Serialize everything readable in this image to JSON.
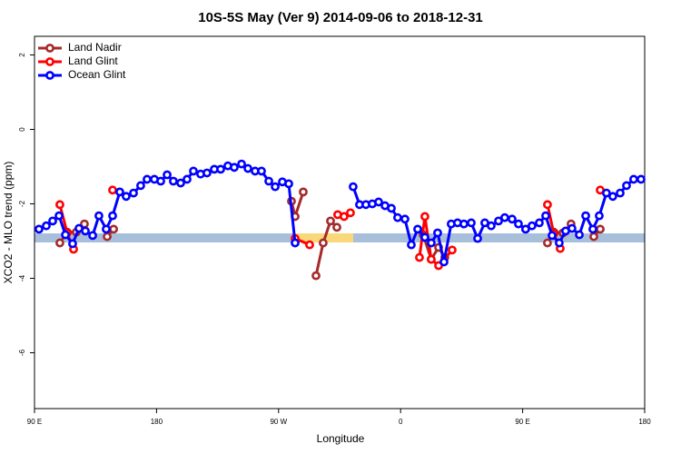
{
  "chart_data": {
    "type": "line",
    "title": "10S-5S May (Ver 9)   2014-09-06 to 2018-12-31",
    "xlabel": "Longitude",
    "ylabel": "XCO2 - MLO trend (ppm)",
    "xlim": [
      90,
      540
    ],
    "ylim": [
      -7.5,
      2.5
    ],
    "xticks": [
      {
        "value": 90,
        "label": "90 E"
      },
      {
        "value": 180,
        "label": "180"
      },
      {
        "value": 270,
        "label": "90 W"
      },
      {
        "value": 360,
        "label": "0"
      },
      {
        "value": 450,
        "label": "90 E"
      },
      {
        "value": 540,
        "label": "180"
      }
    ],
    "yticks": [
      -6,
      -4,
      -2,
      0,
      2
    ],
    "legend": "top-left",
    "series": [
      {
        "name": "Land Nadir",
        "color": "#a52a2a",
        "x": [
          108.7,
          114.1,
          120.8,
          126.8,
          null,
          143.6,
          148.3,
          null,
          279.5,
          282.2,
          288.2,
          null,
          297.6,
          302.9,
          308.3,
          313.0,
          null,
          376.6,
          382.6,
          388.0,
          392.6,
          null,
          468.3,
          473.0,
          479.7,
          485.7,
          null,
          502.5,
          507.2
        ],
        "values": [
          -3.05,
          -2.76,
          -2.76,
          -2.54,
          null,
          -2.88,
          -2.68,
          null,
          -1.93,
          -2.34,
          -1.68,
          null,
          -3.93,
          -3.05,
          -2.46,
          -2.63,
          null,
          -2.83,
          -3.49,
          -3.17,
          -3.44,
          null,
          -3.05,
          -2.76,
          -2.78,
          -2.54,
          null,
          -2.88,
          -2.68
        ]
      },
      {
        "name": "Land Glint",
        "color": "#ff0000",
        "x": [
          108.7,
          114.1,
          118.8,
          null,
          147.6,
          null,
          282.2,
          292.9,
          null,
          313.6,
          318.3,
          323.0,
          null,
          373.9,
          377.9,
          382.6,
          388.0,
          398.0,
          null,
          468.3,
          473.0,
          477.7,
          null,
          507.2
        ],
        "values": [
          -2.02,
          -2.78,
          -3.22,
          null,
          -1.63,
          null,
          -2.93,
          -3.1,
          null,
          -2.29,
          -2.34,
          -2.24,
          null,
          -3.44,
          -2.34,
          -3.49,
          -3.66,
          -3.24,
          null,
          -2.02,
          -2.8,
          -3.2,
          null,
          -1.63
        ]
      },
      {
        "name": "Ocean Glint",
        "color": "#0000ff",
        "x": [
          93.3,
          98.7,
          103.4,
          108.1,
          112.8,
          118.1,
          122.8,
          127.5,
          132.9,
          137.5,
          142.9,
          147.6,
          152.9,
          157.6,
          163.0,
          168.3,
          173.0,
          178.4,
          183.1,
          187.8,
          192.4,
          197.8,
          202.5,
          207.2,
          212.5,
          217.2,
          222.6,
          227.3,
          232.6,
          237.3,
          242.7,
          247.4,
          252.7,
          257.4,
          262.8,
          267.5,
          272.8,
          277.5,
          282.2,
          null,
          325.0,
          329.7,
          334.4,
          339.1,
          343.8,
          348.5,
          353.2,
          357.8,
          363.2,
          367.9,
          372.6,
          377.9,
          382.6,
          387.3,
          392.0,
          397.3,
          402.0,
          406.7,
          412.1,
          416.8,
          422.1,
          426.8,
          432.2,
          436.8,
          442.2,
          446.9,
          452.2,
          456.9,
          462.3,
          467.0,
          471.7,
          477.0,
          481.7,
          486.4,
          491.8,
          496.5,
          501.8,
          506.5,
          511.8,
          516.5,
          521.9,
          526.6,
          531.9,
          537.3
        ],
        "values": [
          -2.68,
          -2.59,
          -2.46,
          -2.32,
          -2.83,
          -3.07,
          -2.66,
          -2.73,
          -2.85,
          -2.32,
          -2.68,
          -2.32,
          -1.68,
          -1.8,
          -1.71,
          -1.51,
          -1.34,
          -1.34,
          -1.39,
          -1.22,
          -1.39,
          -1.44,
          -1.34,
          -1.12,
          -1.2,
          -1.17,
          -1.07,
          -1.07,
          -0.98,
          -1.02,
          -0.93,
          -1.05,
          -1.12,
          -1.12,
          -1.39,
          -1.54,
          -1.41,
          -1.46,
          -3.05,
          null,
          -1.54,
          -2.02,
          -2.02,
          -2.0,
          -1.95,
          -2.05,
          -2.12,
          -2.37,
          -2.41,
          -3.1,
          -2.68,
          -2.9,
          -3.05,
          -2.78,
          -3.56,
          -2.54,
          -2.51,
          -2.54,
          -2.51,
          -2.93,
          -2.51,
          -2.59,
          -2.46,
          -2.37,
          -2.41,
          -2.54,
          -2.68,
          -2.59,
          -2.51,
          -2.32,
          -2.85,
          -3.05,
          -2.73,
          -2.66,
          -2.83,
          -2.32,
          -2.68,
          -2.32,
          -1.71,
          -1.8,
          -1.71,
          -1.51,
          -1.34,
          -1.34
        ]
      }
    ]
  }
}
